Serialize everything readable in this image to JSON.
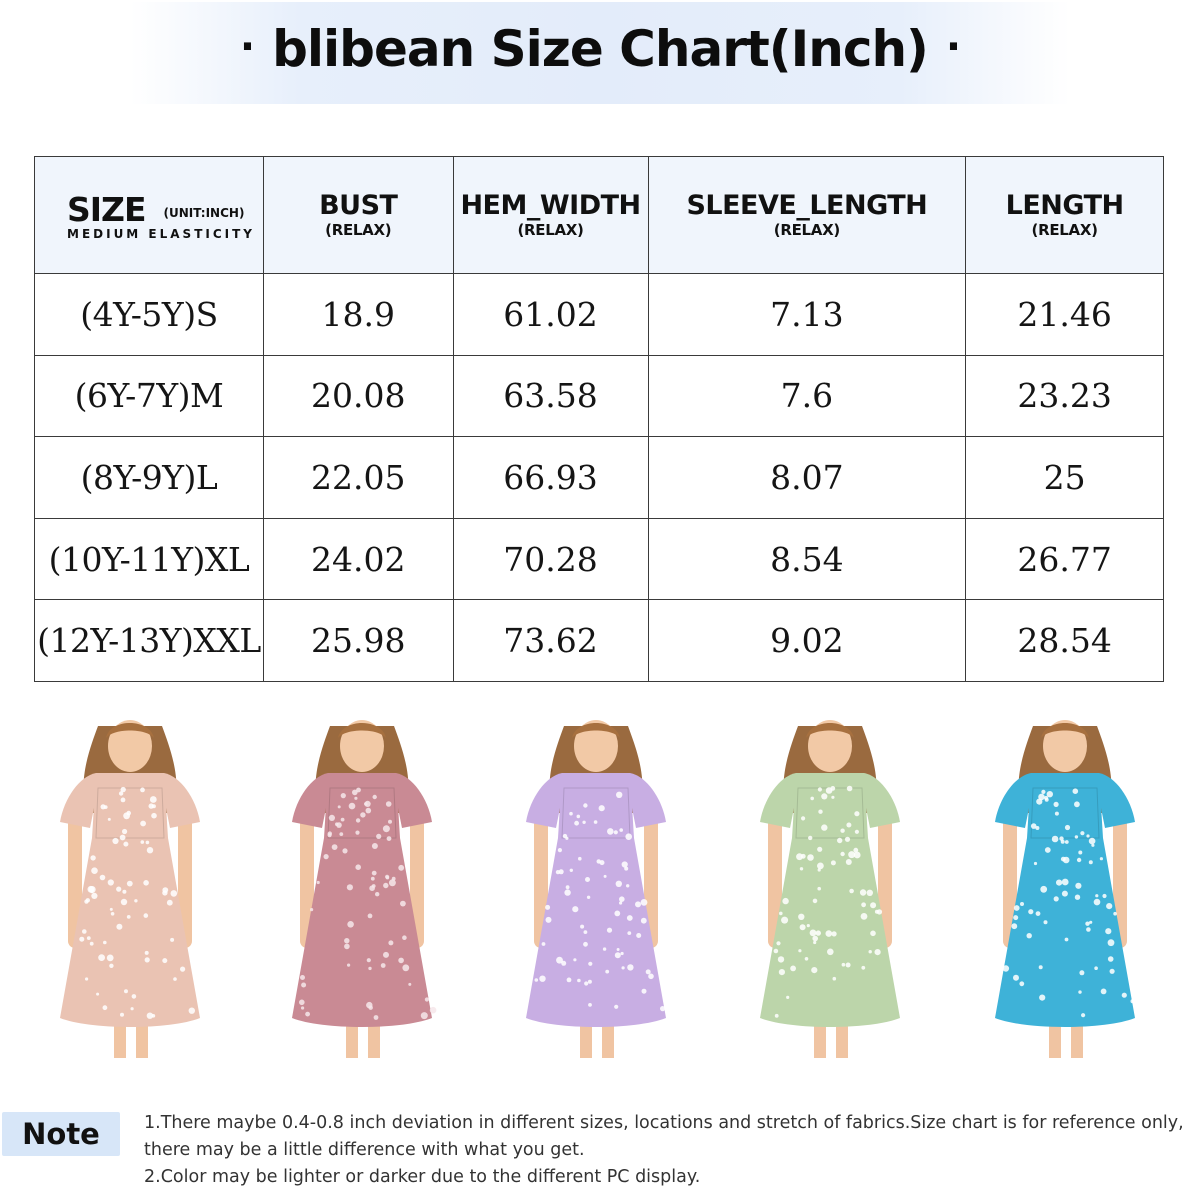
{
  "title": {
    "text": "blibean Size Chart(Inch)",
    "dot": "·"
  },
  "table": {
    "size_header": {
      "label": "SIZE",
      "unit": "(UNIT:INCH)",
      "elasticity": "MEDIUM ELASTICITY"
    },
    "columns": [
      {
        "name": "BUST",
        "sub": "(RELAX)"
      },
      {
        "name": "HEM_WIDTH",
        "sub": "(RELAX)"
      },
      {
        "name": "SLEEVE_LENGTH",
        "sub": "(RELAX)"
      },
      {
        "name": "LENGTH",
        "sub": "(RELAX)"
      }
    ],
    "rows": [
      {
        "size": "(4Y-5Y)S",
        "bust": "18.9",
        "hem_width": "61.02",
        "sleeve_length": "7.13",
        "length": "21.46"
      },
      {
        "size": "(6Y-7Y)M",
        "bust": "20.08",
        "hem_width": "63.58",
        "sleeve_length": "7.6",
        "length": "23.23"
      },
      {
        "size": "(8Y-9Y)L",
        "bust": "22.05",
        "hem_width": "66.93",
        "sleeve_length": "8.07",
        "length": "25"
      },
      {
        "size": "(10Y-11Y)XL",
        "bust": "24.02",
        "hem_width": "70.28",
        "sleeve_length": "8.54",
        "length": "26.77"
      },
      {
        "size": "(12Y-13Y)XXL",
        "bust": "25.98",
        "hem_width": "73.62",
        "sleeve_length": "9.02",
        "length": "28.54"
      }
    ]
  },
  "models": [
    {
      "color_name": "apricot-floral",
      "dress_color": "#eac3b3",
      "print_color": "#ffffff"
    },
    {
      "color_name": "pink-floral",
      "dress_color": "#c98a94",
      "print_color": "#f6e6ea"
    },
    {
      "color_name": "purple-floral",
      "dress_color": "#c8aee3",
      "print_color": "#ffffff"
    },
    {
      "color_name": "green-floral",
      "dress_color": "#bcd5aa",
      "print_color": "#ffffff"
    },
    {
      "color_name": "blue-floral",
      "dress_color": "#3eb2d8",
      "print_color": "#ffffff"
    }
  ],
  "note": {
    "label": "Note",
    "lines": [
      "1.There maybe 0.4-0.8 inch deviation in different sizes, locations and  stretch of fabrics.Size chart is for reference only,",
      "there may be a little difference with what you get.",
      "2.Color may be lighter or darker due to the different PC display."
    ]
  }
}
